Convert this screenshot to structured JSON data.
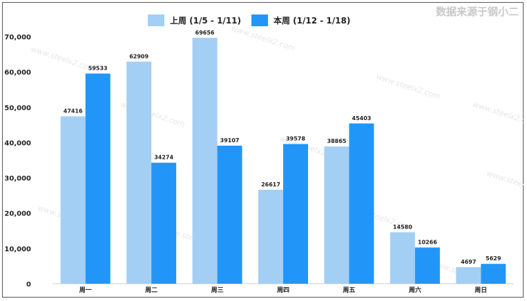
{
  "source_note": "数据来源于钢小二",
  "watermark": "www.steelx2.com",
  "colors": {
    "series_1": "#a3cff4",
    "series_2": "#2196f8",
    "axis": "#cccccc"
  },
  "chart_data": {
    "type": "bar",
    "title": "",
    "xlabel": "",
    "ylabel": "",
    "categories": [
      "周一",
      "周二",
      "周三",
      "周四",
      "周五",
      "周六",
      "周日"
    ],
    "series": [
      {
        "name": "上周 (1/5 - 1/11)",
        "values": [
          47416,
          62909,
          69656,
          26617,
          38865,
          14580,
          4697
        ]
      },
      {
        "name": "本周 (1/12 - 1/18)",
        "values": [
          59533,
          34274,
          39107,
          39578,
          45403,
          10266,
          5629
        ]
      }
    ],
    "yticks": [
      "0",
      "10,000",
      "20,000",
      "30,000",
      "40,000",
      "50,000",
      "60,000",
      "70,000"
    ],
    "ylim": [
      0,
      70000
    ],
    "grid": false,
    "legend_position": "top-center"
  }
}
